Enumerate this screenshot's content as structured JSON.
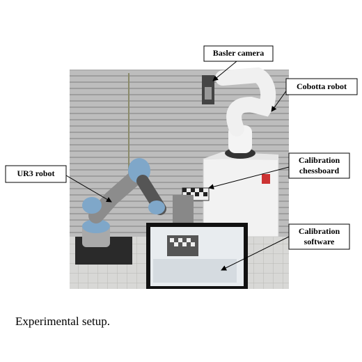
{
  "figure": {
    "labels": [
      "Basler camera",
      "Cobotta robot",
      "Calibration",
      "chessboard",
      "UR3 robot",
      "Calibration",
      "software"
    ],
    "caption": "Experimental setup."
  }
}
